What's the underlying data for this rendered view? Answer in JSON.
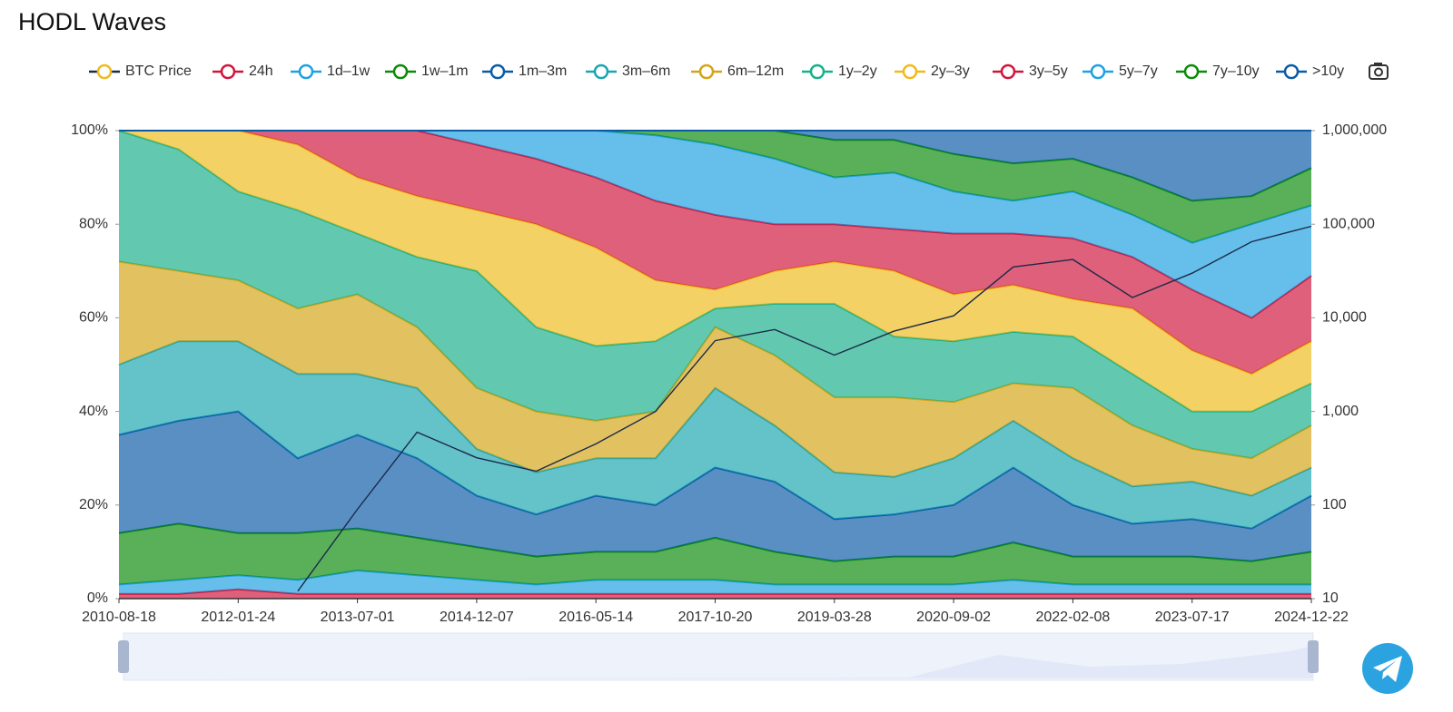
{
  "chart_data": {
    "type": "area",
    "stacked": true,
    "title": "HODL Waves",
    "categories": [
      "2010-08-18",
      null,
      "2012-01-24",
      null,
      "2013-07-01",
      null,
      "2014-12-07",
      null,
      "2016-05-14",
      null,
      "2017-10-20",
      null,
      "2019-03-28",
      null,
      "2020-09-02",
      null,
      "2022-02-08",
      null,
      "2023-07-17",
      null,
      "2024-12-22"
    ],
    "ylim": [
      0,
      100
    ],
    "yticks": [
      {
        "value": 0,
        "label": "0%"
      },
      {
        "value": 20,
        "label": "20%"
      },
      {
        "value": 40,
        "label": "40%"
      },
      {
        "value": 60,
        "label": "60%"
      },
      {
        "value": 80,
        "label": "80%"
      },
      {
        "value": 100,
        "label": "100%"
      }
    ],
    "y2lim": [
      10,
      1000000
    ],
    "y2log": true,
    "y2ticks": [
      10,
      100,
      {
        "value": 1000,
        "label": "1,000"
      },
      {
        "value": 10000,
        "label": "10,000"
      },
      {
        "value": 100000,
        "label": "100,000"
      },
      {
        "value": 1000000,
        "label": "1,000,000"
      }
    ],
    "series": [
      {
        "name": "BTC Price",
        "color": "#1b2a4a",
        "marker_color": "#efbb1a",
        "axis": "y2",
        "type": "line",
        "values": [
          null,
          null,
          null,
          12,
          90,
          600,
          320,
          230,
          450,
          1000,
          5700,
          7500,
          4000,
          7200,
          10500,
          35000,
          42000,
          16500,
          30000,
          65000,
          95000
        ]
      },
      {
        "name": "24h",
        "color": "#d0143c",
        "values": [
          1,
          1,
          2,
          1,
          1,
          1,
          1,
          1,
          1,
          1,
          1,
          1,
          1,
          1,
          1,
          1,
          1,
          1,
          1,
          1,
          1
        ]
      },
      {
        "name": "1d–1w",
        "color": "#1ea1e0",
        "values": [
          2,
          3,
          3,
          3,
          5,
          4,
          3,
          2,
          3,
          3,
          3,
          2,
          2,
          2,
          2,
          3,
          2,
          2,
          2,
          2,
          2
        ]
      },
      {
        "name": "1w–1m",
        "color": "#0b8a0b",
        "values": [
          11,
          12,
          9,
          10,
          9,
          8,
          7,
          6,
          6,
          6,
          9,
          7,
          5,
          6,
          6,
          8,
          6,
          6,
          6,
          5,
          7
        ]
      },
      {
        "name": "1m–3m",
        "color": "#0b5aa6",
        "values": [
          21,
          22,
          26,
          16,
          20,
          17,
          11,
          9,
          12,
          10,
          15,
          15,
          9,
          9,
          11,
          16,
          11,
          7,
          8,
          7,
          12
        ]
      },
      {
        "name": "3m–6m",
        "color": "#1aa5b0",
        "values": [
          15,
          17,
          15,
          18,
          13,
          15,
          10,
          9,
          8,
          10,
          17,
          12,
          10,
          8,
          10,
          10,
          10,
          8,
          8,
          7,
          6
        ]
      },
      {
        "name": "6m–12m",
        "color": "#d4a514",
        "values": [
          22,
          15,
          13,
          14,
          17,
          13,
          13,
          13,
          8,
          10,
          13,
          15,
          16,
          17,
          12,
          8,
          15,
          13,
          7,
          8,
          9
        ]
      },
      {
        "name": "1y–2y",
        "color": "#17b08a",
        "values": [
          28,
          26,
          19,
          21,
          13,
          15,
          25,
          18,
          16,
          15,
          4,
          11,
          20,
          13,
          13,
          11,
          11,
          11,
          8,
          10,
          9
        ]
      },
      {
        "name": "2y–3y",
        "color": "#efbb1a",
        "values": [
          0,
          4,
          13,
          14,
          12,
          13,
          13,
          22,
          21,
          13,
          4,
          7,
          9,
          14,
          10,
          10,
          8,
          14,
          13,
          8,
          9
        ]
      },
      {
        "name": "3y–5y",
        "color": "#d0143c",
        "values": [
          0,
          0,
          0,
          3,
          10,
          14,
          14,
          14,
          15,
          17,
          16,
          10,
          8,
          9,
          13,
          11,
          13,
          11,
          13,
          12,
          14
        ]
      },
      {
        "name": "5y–7y",
        "color": "#1ea1e0",
        "values": [
          0,
          0,
          0,
          0,
          0,
          0,
          3,
          6,
          10,
          14,
          15,
          14,
          10,
          12,
          9,
          7,
          10,
          9,
          10,
          20,
          15
        ]
      },
      {
        "name": "7y–10y",
        "color": "#0b8a0b",
        "values": [
          0,
          0,
          0,
          0,
          0,
          0,
          0,
          0,
          0,
          1,
          3,
          6,
          8,
          7,
          8,
          8,
          7,
          8,
          9,
          6,
          8
        ]
      },
      {
        "name": ">10y",
        "color": "#0b5aa6",
        "values": [
          0,
          0,
          0,
          0,
          0,
          0,
          0,
          0,
          0,
          0,
          0,
          0,
          2,
          2,
          5,
          7,
          6,
          10,
          15,
          14,
          8
        ]
      }
    ]
  }
}
